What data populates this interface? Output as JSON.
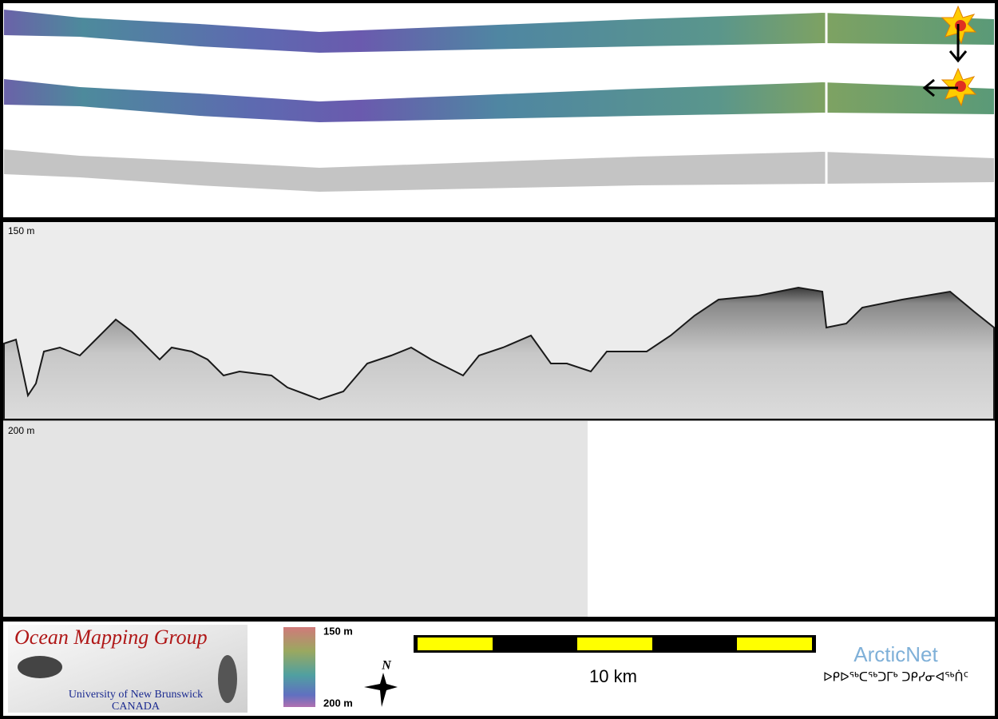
{
  "profile": {
    "top_depth_label": "150 m",
    "bottom_depth_label": "200 m"
  },
  "footer": {
    "logo_title": "Ocean Mapping Group",
    "logo_university": "University of New Brunswick",
    "logo_country": "CANADA",
    "colorbar_top_label": "150 m",
    "colorbar_bottom_label": "200 m",
    "north_label": "N",
    "scale_label": "10 km",
    "partner_name": "ArcticNet",
    "partner_syllabics": "ᐅᑭᐅᖅᑕᖅᑐᒥᒃ ᑐᑭᓯᓂᐊᖅᑏᑦ"
  }
}
